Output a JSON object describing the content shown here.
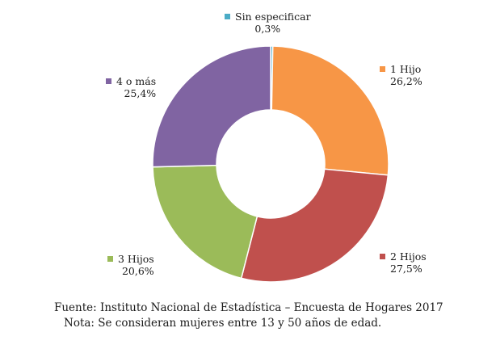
{
  "chart_data": {
    "type": "pie",
    "categories": [
      "Sin especificar",
      "1 Hijo",
      "2 Hijos",
      "3 Hijos",
      "4 o más"
    ],
    "values": [
      0.3,
      26.2,
      27.5,
      20.6,
      25.4
    ],
    "value_labels": [
      "0,3%",
      "26,2%",
      "27,5%",
      "20,6%",
      "25,4%"
    ],
    "colors": [
      "#4bacc6",
      "#f79646",
      "#c0504d",
      "#9bbb59",
      "#8064a2"
    ],
    "donut": true,
    "start_angle_deg": 0,
    "direction": "clockwise",
    "legend": "none",
    "title": ""
  },
  "footer": {
    "source": "Fuente: Instituto Nacional de Estadística – Encuesta de Hogares 2017",
    "note": "Nota: Se consideran mujeres entre 13 y 50 años de edad."
  }
}
